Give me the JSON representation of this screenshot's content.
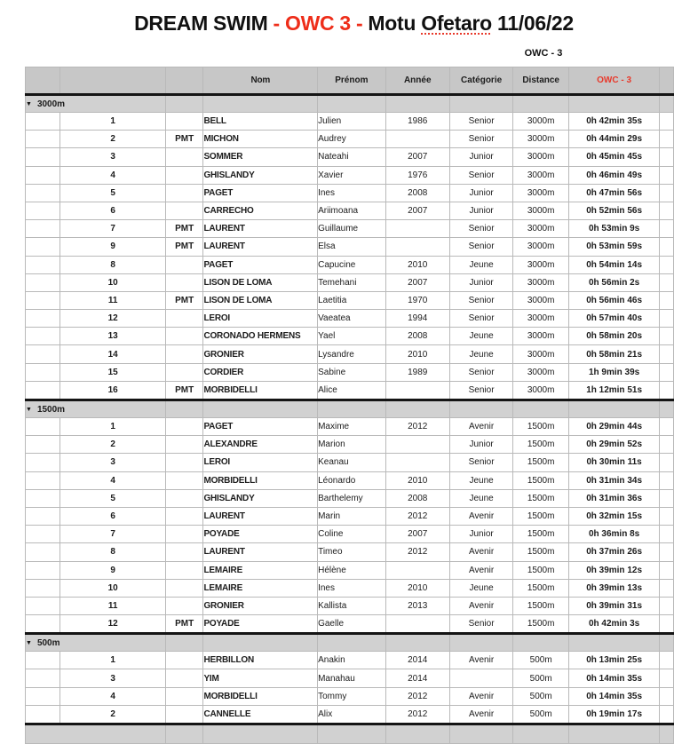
{
  "header": {
    "title_event": "DREAM SWIM",
    "title_accent": " - OWC 3 - ",
    "title_loc_prefix": "Motu ",
    "title_loc_word": "Ofetaro",
    "title_date": " 11/06/22",
    "floating_label": "OWC - 3"
  },
  "colors": {
    "accent_red": "#e8392b",
    "title_red": "#ee2d19",
    "header_bg": "#c7c7c7",
    "section_bg": "#d1d1d1",
    "left_cell_bg": "#d9d9d9",
    "grid_line": "#b9b9b9",
    "thick_line": "#141414"
  },
  "table": {
    "headers": [
      "",
      "",
      "",
      "Nom",
      "Prénom",
      "Année",
      "Catégorie",
      "Distance",
      "OWC - 3",
      ""
    ],
    "red_header": "OWC - 3",
    "collapse_icon": "▼",
    "sections": [
      {
        "label": "3000m",
        "rows": [
          {
            "rank": "1",
            "pmt": "",
            "nom": "BELL",
            "prenom": "Julien",
            "annee": "1986",
            "categorie": "Senior",
            "distance": "3000m",
            "owc": "0h 42min 35s"
          },
          {
            "rank": "2",
            "pmt": "PMT",
            "nom": "MICHON",
            "prenom": "Audrey",
            "annee": "",
            "categorie": "Senior",
            "distance": "3000m",
            "owc": "0h 44min 29s"
          },
          {
            "rank": "3",
            "pmt": "",
            "nom": "SOMMER",
            "prenom": "Nateahi",
            "annee": "2007",
            "categorie": "Junior",
            "distance": "3000m",
            "owc": "0h 45min 45s"
          },
          {
            "rank": "4",
            "pmt": "",
            "nom": "GHISLANDY",
            "prenom": "Xavier",
            "annee": "1976",
            "categorie": "Senior",
            "distance": "3000m",
            "owc": "0h 46min 49s"
          },
          {
            "rank": "5",
            "pmt": "",
            "nom": "PAGET",
            "prenom": "Ines",
            "annee": "2008",
            "categorie": "Junior",
            "distance": "3000m",
            "owc": "0h 47min 56s"
          },
          {
            "rank": "6",
            "pmt": "",
            "nom": "CARRECHO",
            "prenom": "Ariimoana",
            "annee": "2007",
            "categorie": "Junior",
            "distance": "3000m",
            "owc": "0h 52min 56s"
          },
          {
            "rank": "7",
            "pmt": "PMT",
            "nom": "LAURENT",
            "prenom": "Guillaume",
            "annee": "",
            "categorie": "Senior",
            "distance": "3000m",
            "owc": "0h 53min 9s"
          },
          {
            "rank": "9",
            "pmt": "PMT",
            "nom": "LAURENT",
            "prenom": "Elsa",
            "annee": "",
            "categorie": "Senior",
            "distance": "3000m",
            "owc": "0h 53min 59s"
          },
          {
            "rank": "8",
            "pmt": "",
            "nom": "PAGET",
            "prenom": "Capucine",
            "annee": "2010",
            "categorie": "Jeune",
            "distance": "3000m",
            "owc": "0h 54min 14s"
          },
          {
            "rank": "10",
            "pmt": "",
            "nom": "LISON DE LOMA",
            "prenom": "Temehani",
            "annee": "2007",
            "categorie": "Junior",
            "distance": "3000m",
            "owc": "0h 56min 2s"
          },
          {
            "rank": "11",
            "pmt": "PMT",
            "nom": "LISON DE LOMA",
            "prenom": "Laetitia",
            "annee": "1970",
            "categorie": "Senior",
            "distance": "3000m",
            "owc": "0h 56min 46s"
          },
          {
            "rank": "12",
            "pmt": "",
            "nom": "LEROI",
            "prenom": "Vaeatea",
            "annee": "1994",
            "categorie": "Senior",
            "distance": "3000m",
            "owc": "0h 57min 40s"
          },
          {
            "rank": "13",
            "pmt": "",
            "nom": "CORONADO HERMENS",
            "prenom": "Yael",
            "annee": "2008",
            "categorie": "Jeune",
            "distance": "3000m",
            "owc": "0h 58min 20s"
          },
          {
            "rank": "14",
            "pmt": "",
            "nom": "GRONIER",
            "prenom": "Lysandre",
            "annee": "2010",
            "categorie": "Jeune",
            "distance": "3000m",
            "owc": "0h 58min 21s"
          },
          {
            "rank": "15",
            "pmt": "",
            "nom": "CORDIER",
            "prenom": "Sabine",
            "annee": "1989",
            "categorie": "Senior",
            "distance": "3000m",
            "owc": "1h 9min 39s"
          },
          {
            "rank": "16",
            "pmt": "PMT",
            "nom": "MORBIDELLI",
            "prenom": "Alice",
            "annee": "",
            "categorie": "Senior",
            "distance": "3000m",
            "owc": "1h 12min 51s"
          }
        ]
      },
      {
        "label": "1500m",
        "rows": [
          {
            "rank": "1",
            "pmt": "",
            "nom": "PAGET",
            "prenom": "Maxime",
            "annee": "2012",
            "categorie": "Avenir",
            "distance": "1500m",
            "owc": "0h 29min 44s"
          },
          {
            "rank": "2",
            "pmt": "",
            "nom": "ALEXANDRE",
            "prenom": "Marion",
            "annee": "",
            "categorie": "Junior",
            "distance": "1500m",
            "owc": "0h 29min 52s"
          },
          {
            "rank": "3",
            "pmt": "",
            "nom": "LEROI",
            "prenom": "Keanau",
            "annee": "",
            "categorie": "Senior",
            "distance": "1500m",
            "owc": "0h 30min 11s"
          },
          {
            "rank": "4",
            "pmt": "",
            "nom": "MORBIDELLI",
            "prenom": "Léonardo",
            "annee": "2010",
            "categorie": "Jeune",
            "distance": "1500m",
            "owc": "0h 31min 34s"
          },
          {
            "rank": "5",
            "pmt": "",
            "nom": "GHISLANDY",
            "prenom": "Barthelemy",
            "annee": "2008",
            "categorie": "Jeune",
            "distance": "1500m",
            "owc": "0h 31min 36s"
          },
          {
            "rank": "6",
            "pmt": "",
            "nom": "LAURENT",
            "prenom": "Marin",
            "annee": "2012",
            "categorie": "Avenir",
            "distance": "1500m",
            "owc": "0h 32min 15s"
          },
          {
            "rank": "7",
            "pmt": "",
            "nom": "POYADE",
            "prenom": "Coline",
            "annee": "2007",
            "categorie": "Junior",
            "distance": "1500m",
            "owc": "0h 36min 8s"
          },
          {
            "rank": "8",
            "pmt": "",
            "nom": "LAURENT",
            "prenom": "Timeo",
            "annee": "2012",
            "categorie": "Avenir",
            "distance": "1500m",
            "owc": "0h 37min 26s"
          },
          {
            "rank": "9",
            "pmt": "",
            "nom": "LEMAIRE",
            "prenom": "Hélène",
            "annee": "",
            "categorie": "Avenir",
            "distance": "1500m",
            "owc": "0h 39min 12s"
          },
          {
            "rank": "10",
            "pmt": "",
            "nom": "LEMAIRE",
            "prenom": "Ines",
            "annee": "2010",
            "categorie": "Jeune",
            "distance": "1500m",
            "owc": "0h 39min 13s"
          },
          {
            "rank": "11",
            "pmt": "",
            "nom": "GRONIER",
            "prenom": "Kallista",
            "annee": "2013",
            "categorie": "Avenir",
            "distance": "1500m",
            "owc": "0h 39min 31s"
          },
          {
            "rank": "12",
            "pmt": "PMT",
            "nom": "POYADE",
            "prenom": "Gaelle",
            "annee": "",
            "categorie": "Senior",
            "distance": "1500m",
            "owc": "0h 42min 3s"
          }
        ]
      },
      {
        "label": "500m",
        "rows": [
          {
            "rank": "1",
            "pmt": "",
            "nom": "HERBILLON",
            "prenom": "Anakin",
            "annee": "2014",
            "categorie": "Avenir",
            "distance": "500m",
            "owc": "0h 13min 25s"
          },
          {
            "rank": "3",
            "pmt": "",
            "nom": "YIM",
            "prenom": "Manahau",
            "annee": "2014",
            "categorie": "",
            "distance": "500m",
            "owc": "0h 14min 35s"
          },
          {
            "rank": "4",
            "pmt": "",
            "nom": "MORBIDELLI",
            "prenom": "Tommy",
            "annee": "2012",
            "categorie": "Avenir",
            "distance": "500m",
            "owc": "0h 14min 35s"
          },
          {
            "rank": "2",
            "pmt": "",
            "nom": "CANNELLE",
            "prenom": "Alix",
            "annee": "2012",
            "categorie": "Avenir",
            "distance": "500m",
            "owc": "0h 19min 17s"
          }
        ]
      }
    ]
  }
}
